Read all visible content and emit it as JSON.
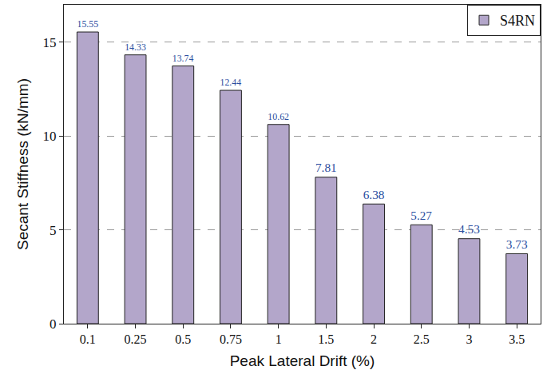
{
  "chart_data": {
    "type": "bar",
    "x_label": "Peak Lateral Drift (%)",
    "y_label": "Secant Stiffness (kN/mm)",
    "categories": [
      "0.1",
      "0.25",
      "0.5",
      "0.75",
      "1",
      "1.5",
      "2",
      "2.5",
      "3",
      "3.5"
    ],
    "series": [
      {
        "name": "S4RN",
        "color": "#b3a6ca",
        "values": [
          15.55,
          14.33,
          13.74,
          12.44,
          10.62,
          7.81,
          6.38,
          5.27,
          4.53,
          3.73
        ]
      }
    ],
    "ylim": [
      0,
      17
    ],
    "yticks": [
      0,
      5,
      10,
      15
    ],
    "grid": true,
    "legend": "upper right",
    "data_labels": true
  }
}
